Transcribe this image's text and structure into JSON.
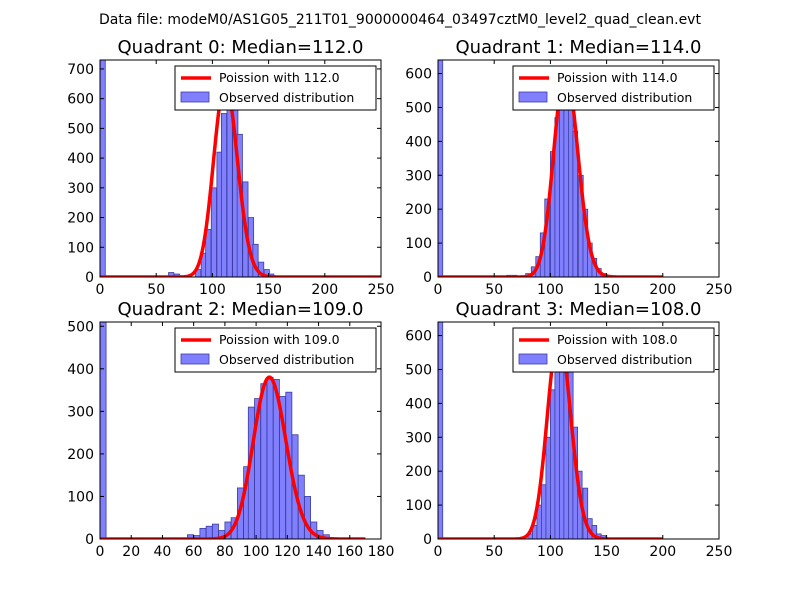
{
  "suptitle": "Data file: modeM0/AS1G05_211T01_9000000464_03497cztM0_level2_quad_clean.evt",
  "colors": {
    "bar_fill": "#8080ff",
    "bar_edge": "#3c3ca0",
    "curve": "#ff0000",
    "axes": "#000000"
  },
  "chart_data": [
    {
      "type": "bar",
      "title": "Quadrant 0: Median=112.0",
      "median": 112.0,
      "xlim": [
        0,
        250
      ],
      "ylim": [
        0,
        730
      ],
      "xticks": [
        0,
        50,
        100,
        150,
        200,
        250
      ],
      "yticks": [
        0,
        100,
        200,
        300,
        400,
        500,
        600,
        700
      ],
      "legend": {
        "placement": "top-right",
        "curve_label": "Poission with 112.0",
        "bars_label": "Observed distribution"
      },
      "bin_width": 4.7,
      "bins": [
        [
          0,
          730
        ],
        [
          61,
          15
        ],
        [
          66,
          10
        ],
        [
          85,
          25
        ],
        [
          90,
          80
        ],
        [
          94,
          160
        ],
        [
          99,
          300
        ],
        [
          104,
          420
        ],
        [
          108,
          550
        ],
        [
          113,
          650
        ],
        [
          118,
          620
        ],
        [
          122,
          480
        ],
        [
          127,
          320
        ],
        [
          132,
          200
        ],
        [
          136,
          110
        ],
        [
          141,
          50
        ],
        [
          146,
          25
        ],
        [
          150,
          10
        ]
      ],
      "curve": {
        "x_start": 0,
        "x_end": 250
      }
    },
    {
      "type": "bar",
      "title": "Quadrant 1: Median=114.0",
      "median": 114.0,
      "xlim": [
        0,
        250
      ],
      "ylim": [
        0,
        640
      ],
      "xticks": [
        0,
        50,
        100,
        150,
        200,
        250
      ],
      "yticks": [
        0,
        100,
        200,
        300,
        400,
        500,
        600
      ],
      "legend": {
        "placement": "top-right",
        "curve_label": "Poission with 114.0",
        "bars_label": "Observed distribution"
      },
      "bin_width": 4.2,
      "bins": [
        [
          0,
          640
        ],
        [
          61,
          5
        ],
        [
          66,
          5
        ],
        [
          78,
          10
        ],
        [
          83,
          30
        ],
        [
          87,
          60
        ],
        [
          91,
          130
        ],
        [
          95,
          230
        ],
        [
          100,
          370
        ],
        [
          104,
          470
        ],
        [
          108,
          580
        ],
        [
          112,
          610
        ],
        [
          116,
          510
        ],
        [
          120,
          430
        ],
        [
          125,
          300
        ],
        [
          129,
          200
        ],
        [
          133,
          100
        ],
        [
          137,
          55
        ],
        [
          141,
          25
        ],
        [
          145,
          10
        ],
        [
          149,
          5
        ]
      ],
      "curve": {
        "x_start": 0,
        "x_end": 200
      }
    },
    {
      "type": "bar",
      "title": "Quadrant 2: Median=109.0",
      "median": 109.0,
      "xlim": [
        0,
        180
      ],
      "ylim": [
        0,
        510
      ],
      "xticks": [
        0,
        20,
        40,
        60,
        80,
        100,
        120,
        140,
        160,
        180
      ],
      "yticks": [
        0,
        100,
        200,
        300,
        400,
        500
      ],
      "legend": {
        "placement": "top-right",
        "curve_label": "Poission with 109.0",
        "bars_label": "Observed distribution"
      },
      "bin_width": 3.9,
      "bins": [
        [
          0,
          510
        ],
        [
          56,
          10
        ],
        [
          60,
          8
        ],
        [
          64,
          25
        ],
        [
          68,
          30
        ],
        [
          72,
          35
        ],
        [
          76,
          20
        ],
        [
          80,
          40
        ],
        [
          84,
          50
        ],
        [
          88,
          120
        ],
        [
          92,
          170
        ],
        [
          95,
          310
        ],
        [
          99,
          330
        ],
        [
          103,
          365
        ],
        [
          107,
          380
        ],
        [
          111,
          375
        ],
        [
          115,
          335
        ],
        [
          119,
          345
        ],
        [
          123,
          245
        ],
        [
          127,
          150
        ],
        [
          131,
          100
        ],
        [
          135,
          40
        ],
        [
          139,
          20
        ],
        [
          143,
          10
        ]
      ],
      "curve": {
        "x_start": 0,
        "x_end": 170
      }
    },
    {
      "type": "bar",
      "title": "Quadrant 3: Median=108.0",
      "median": 108.0,
      "xlim": [
        0,
        250
      ],
      "ylim": [
        0,
        640
      ],
      "xticks": [
        0,
        50,
        100,
        150,
        200,
        250
      ],
      "yticks": [
        0,
        100,
        200,
        300,
        400,
        500,
        600
      ],
      "legend": {
        "placement": "top-right",
        "curve_label": "Poission with 108.0",
        "bars_label": "Observed distribution"
      },
      "bin_width": 4.2,
      "bins": [
        [
          0,
          640
        ],
        [
          80,
          15
        ],
        [
          84,
          40
        ],
        [
          88,
          100
        ],
        [
          92,
          160
        ],
        [
          96,
          300
        ],
        [
          100,
          440
        ],
        [
          104,
          520
        ],
        [
          108,
          600
        ],
        [
          112,
          590
        ],
        [
          116,
          530
        ],
        [
          120,
          330
        ],
        [
          124,
          200
        ],
        [
          129,
          150
        ],
        [
          133,
          60
        ],
        [
          137,
          40
        ],
        [
          141,
          15
        ],
        [
          145,
          10
        ]
      ],
      "curve": {
        "x_start": 0,
        "x_end": 200
      }
    }
  ]
}
